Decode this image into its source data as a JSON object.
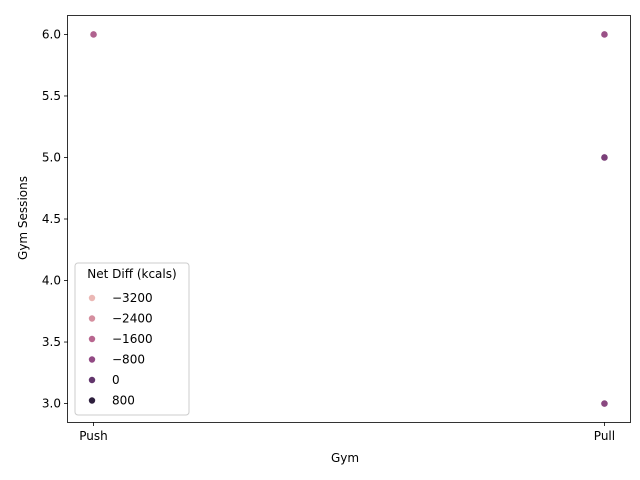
{
  "chart_data": {
    "type": "scatter",
    "xlabel": "Gym",
    "ylabel": "Gym Sessions",
    "categories": [
      "Push",
      "Pull"
    ],
    "x_range": [
      -0.05,
      1.05
    ],
    "ylim": [
      2.85,
      6.15
    ],
    "yticks": [
      3.0,
      3.5,
      4.0,
      4.5,
      5.0,
      5.5,
      6.0
    ],
    "ytick_labels": [
      "3.0",
      "3.5",
      "4.0",
      "4.5",
      "5.0",
      "5.5",
      "6.0"
    ],
    "grid": false,
    "points": [
      {
        "x": "Push",
        "y": 6,
        "color": "#b0628f"
      },
      {
        "x": "Pull",
        "y": 6,
        "color": "#9a5187"
      },
      {
        "x": "Pull",
        "y": 5,
        "color": "#7a3f78"
      },
      {
        "x": "Pull",
        "y": 3,
        "color": "#8a4880"
      }
    ],
    "legend": {
      "title": "Net Diff (kcals)",
      "placement": "lower-left",
      "entries": [
        {
          "label": "−3200",
          "color": "#ebb8b5"
        },
        {
          "label": "−2400",
          "color": "#d58f9f"
        },
        {
          "label": "−1600",
          "color": "#b8668f"
        },
        {
          "label": "−800",
          "color": "#924a84"
        },
        {
          "label": "0",
          "color": "#62356c"
        },
        {
          "label": "800",
          "color": "#2e1f3d"
        }
      ]
    }
  }
}
